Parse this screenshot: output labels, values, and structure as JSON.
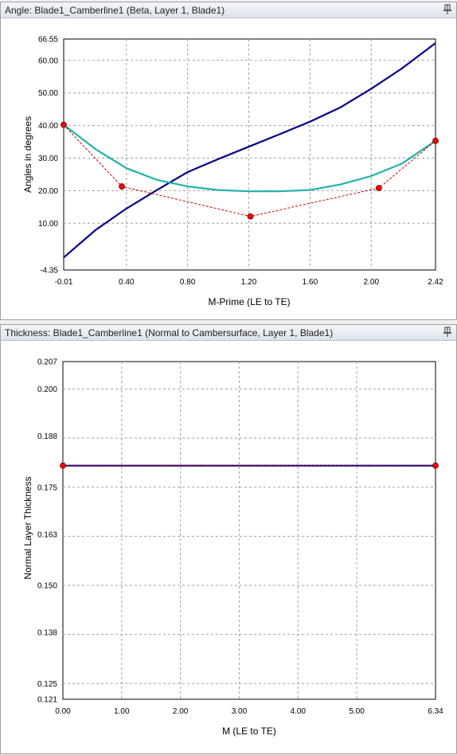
{
  "panels": {
    "angle": {
      "title": "Angle: Blade1_Camberline1 (Beta, Layer 1, Blade1)",
      "pin_icon": "pin-icon"
    },
    "thickness": {
      "title": "Thickness: Blade1_Camberline1 (Normal to Cambersurface, Layer 1, Blade1)",
      "pin_icon": "pin-icon"
    }
  },
  "colors": {
    "beta_line": "#00008b",
    "theta_line": "#20b2aa",
    "control_polygon": "#cc0000",
    "control_point": "#ff0000",
    "grid": "#a0a0a0"
  },
  "chart_data": [
    {
      "type": "line",
      "xlabel": "M-Prime (LE to TE)",
      "ylabel": "Angles in degrees",
      "xlim": [
        -0.01,
        2.42
      ],
      "ylim": [
        -4.35,
        66.55
      ],
      "xticks": [
        "-0.01",
        "0.40",
        "0.80",
        "1.20",
        "1.60",
        "2.00",
        "2.42"
      ],
      "yticks": [
        "-4.35",
        "10.00",
        "20.00",
        "30.00",
        "40.00",
        "50.00",
        "60.00",
        "66.55"
      ],
      "x_gridlines": [
        0.4,
        0.8,
        1.2,
        1.6,
        2.0
      ],
      "y_gridlines": [
        10,
        20,
        30,
        40,
        50,
        60
      ],
      "grid": true,
      "series": [
        {
          "style": "solid-dark-blue",
          "x": [
            -0.01,
            0.2,
            0.4,
            0.6,
            0.8,
            1.0,
            1.2,
            1.4,
            1.6,
            1.8,
            2.0,
            2.2,
            2.42
          ],
          "y": [
            -0.5,
            8,
            14.5,
            20.2,
            25.7,
            29.7,
            33.5,
            37.3,
            41.2,
            45.6,
            51.3,
            57.5,
            65.3
          ]
        },
        {
          "style": "solid-teal",
          "x": [
            -0.01,
            0.2,
            0.4,
            0.6,
            0.8,
            1.0,
            1.2,
            1.4,
            1.6,
            1.8,
            2.0,
            2.2,
            2.42
          ],
          "y": [
            40.2,
            32.7,
            26.9,
            23.3,
            21.3,
            20.2,
            19.8,
            19.8,
            20.2,
            21.9,
            24.5,
            28.3,
            35.3
          ]
        },
        {
          "style": "control-polygon",
          "x": [
            -0.01,
            0.37,
            1.21,
            2.05,
            2.42
          ],
          "y": [
            40.2,
            21.3,
            12.1,
            20.8,
            35.3
          ]
        }
      ]
    },
    {
      "type": "line",
      "xlabel": "M (LE to TE)",
      "ylabel": "Normal Layer Thickness",
      "xlim": [
        0.0,
        6.34
      ],
      "ylim": [
        0.121,
        0.207
      ],
      "xticks": [
        "0.00",
        "1.00",
        "2.00",
        "3.00",
        "4.00",
        "5.00",
        "6.34"
      ],
      "yticks": [
        "0.121",
        "0.125",
        "0.138",
        "0.150",
        "0.163",
        "0.175",
        "0.188",
        "0.200",
        "0.207"
      ],
      "x_gridlines": [
        1,
        2,
        3,
        4,
        5
      ],
      "y_gridlines": [
        0.125,
        0.1375,
        0.15,
        0.1625,
        0.175,
        0.1875,
        0.2
      ],
      "grid": true,
      "series": [
        {
          "style": "solid-dark-blue",
          "x": [
            0.0,
            6.34
          ],
          "y": [
            0.1805,
            0.1805
          ]
        },
        {
          "style": "control-polygon",
          "x": [
            0.0,
            6.34
          ],
          "y": [
            0.1805,
            0.1805
          ]
        }
      ]
    }
  ]
}
